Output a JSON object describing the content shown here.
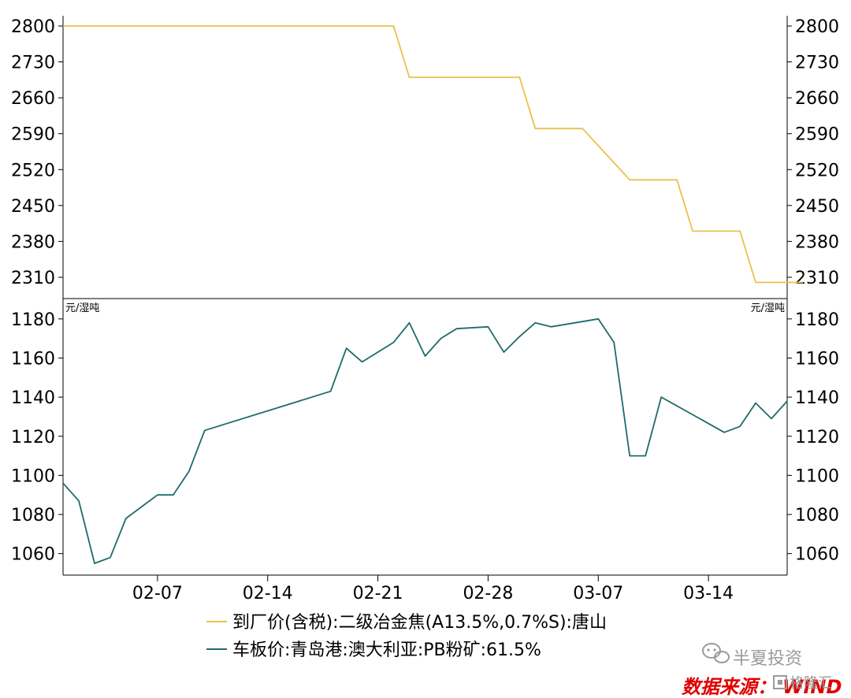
{
  "chart_data": {
    "type": "line",
    "panels": [
      {
        "name": "top",
        "ylim": [
          2270,
          2820
        ],
        "yticks": [
          2310,
          2380,
          2450,
          2520,
          2590,
          2660,
          2730,
          2800
        ],
        "unit_left": "",
        "unit_right": "",
        "series": [
          {
            "name": "到厂价(含税):二级冶金焦(A13.5%,0.7%S):唐山",
            "color": "#e8c24a",
            "dates": [
              "2023-02-01",
              "2023-02-22",
              "2023-02-23",
              "2023-03-02",
              "2023-03-03",
              "2023-03-06",
              "2023-03-09",
              "2023-03-12",
              "2023-03-13",
              "2023-03-16",
              "2023-03-17",
              "2023-03-20"
            ],
            "values": [
              2800,
              2800,
              2700,
              2700,
              2600,
              2600,
              2500,
              2500,
              2400,
              2400,
              2300,
              2300
            ]
          }
        ]
      },
      {
        "name": "bottom",
        "ylim": [
          1049,
          1190
        ],
        "yticks": [
          1060,
          1080,
          1100,
          1120,
          1140,
          1160,
          1180
        ],
        "unit_left": "元/湿吨",
        "unit_right": "元/湿吨",
        "series": [
          {
            "name": "车板价:青岛港:澳大利亚:PB粉矿:61.5%",
            "color": "#1f6b6b",
            "dates": [
              "2023-02-01",
              "2023-02-02",
              "2023-02-03",
              "2023-02-04",
              "2023-02-05",
              "2023-02-07",
              "2023-02-08",
              "2023-02-09",
              "2023-02-10",
              "2023-02-18",
              "2023-02-19",
              "2023-02-20",
              "2023-02-22",
              "2023-02-23",
              "2023-02-24",
              "2023-02-25",
              "2023-02-26",
              "2023-02-28",
              "2023-03-01",
              "2023-03-02",
              "2023-03-03",
              "2023-03-04",
              "2023-03-07",
              "2023-03-08",
              "2023-03-09",
              "2023-03-10",
              "2023-03-11",
              "2023-03-15",
              "2023-03-16",
              "2023-03-17",
              "2023-03-18",
              "2023-03-19"
            ],
            "values": [
              1096,
              1087,
              1055,
              1058,
              1078,
              1090,
              1090,
              1102,
              1123,
              1143,
              1165,
              1158,
              1168,
              1178,
              1161,
              1170,
              1175,
              1176,
              1163,
              1171,
              1178,
              1176,
              1180,
              1168,
              1110,
              1110,
              1140,
              1122,
              1125,
              1137,
              1129,
              1138
            ]
          }
        ]
      }
    ],
    "x_range": [
      "2023-02-01",
      "2023-03-19"
    ],
    "x_ticks": [
      "02-07",
      "02-14",
      "02-21",
      "02-28",
      "03-07",
      "03-14"
    ],
    "x_tick_dates": [
      "2023-02-07",
      "2023-02-14",
      "2023-02-21",
      "2023-02-28",
      "2023-03-07",
      "2023-03-14"
    ],
    "grid": false,
    "legend_position": "bottom"
  },
  "watermark": "半夏投资",
  "source_label": "数据来源：",
  "source_name": "WIND",
  "logo_text": "格隆汇"
}
